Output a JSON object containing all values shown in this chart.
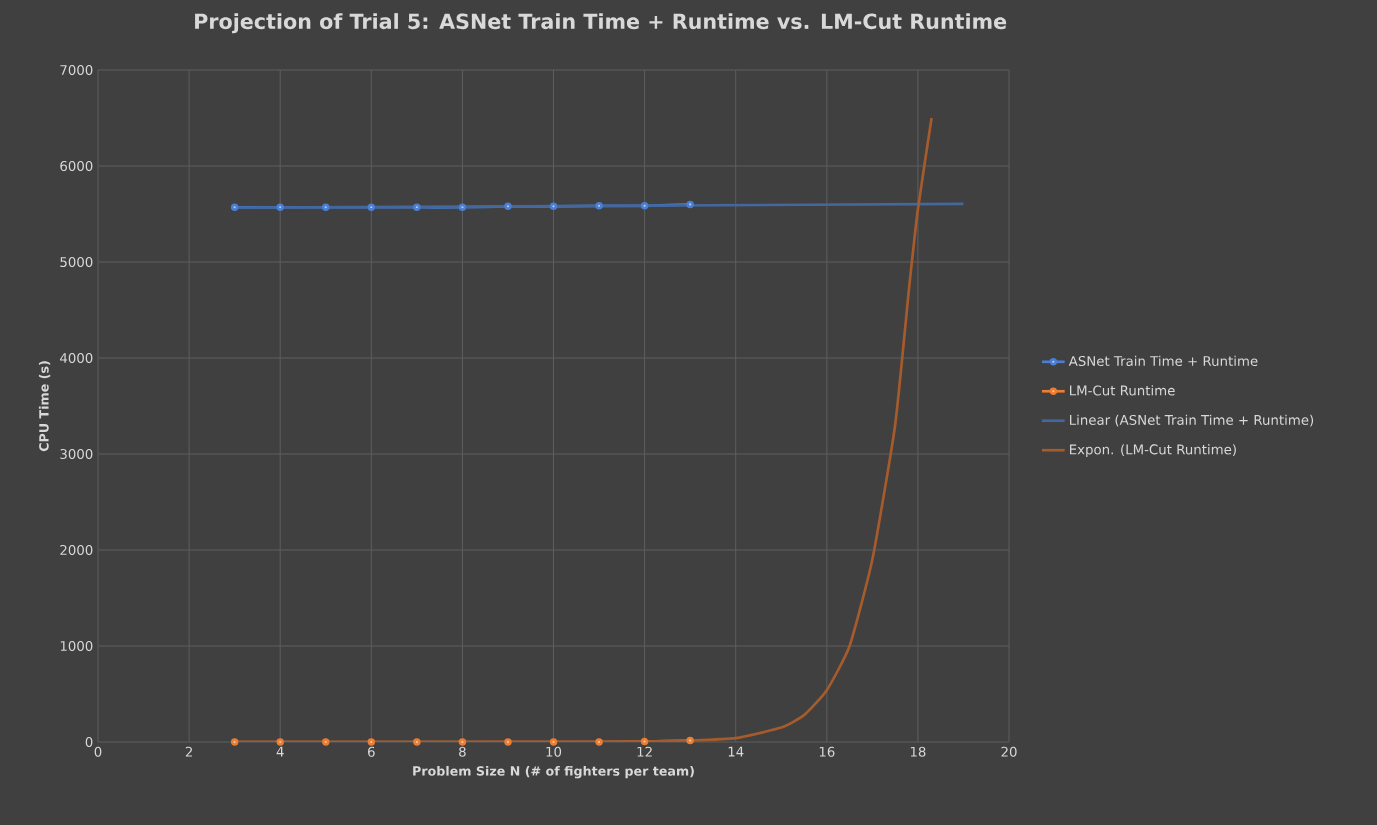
{
  "chart_data": {
    "type": "line",
    "title": "Projection of Trial 5: ASNet Train Time + Runtime vs. LM-Cut Runtime",
    "xlabel": "Problem Size N (# of fighters per team)",
    "ylabel": "CPU Time (s)",
    "x": [
      3,
      4,
      5,
      6,
      7,
      8,
      9,
      10,
      11,
      12,
      13
    ],
    "series": [
      {
        "name": "ASNet Train Time + Runtime",
        "color": "#4a7fd4",
        "marker": "circle",
        "values": [
          5570,
          5570,
          5570,
          5570,
          5570,
          5570,
          5580,
          5580,
          5585,
          5585,
          5600
        ]
      },
      {
        "name": "LM-Cut Runtime",
        "color": "#ed7d31",
        "marker": "circle",
        "values": [
          0,
          0,
          0,
          0,
          0,
          0,
          0,
          0,
          0,
          5,
          15
        ]
      },
      {
        "name": "Linear (ASNet Train Time + Runtime)",
        "color": "#44679e",
        "marker": "none",
        "x": [
          3,
          19
        ],
        "values": [
          5565,
          5605
        ]
      },
      {
        "name": "Expon. (LM-Cut Runtime)",
        "color": "#a65b2c",
        "marker": "none",
        "x": [
          3,
          10,
          12,
          13,
          14,
          15,
          15.5,
          16,
          16.5,
          17,
          17.5,
          17.8,
          18,
          18.3
        ],
        "values": [
          0,
          1,
          5,
          15,
          40,
          150,
          280,
          540,
          1000,
          1900,
          3300,
          4700,
          5550,
          6500
        ]
      }
    ],
    "xlim": [
      0,
      20
    ],
    "ylim": [
      0,
      7000
    ],
    "xticks": [
      0,
      2,
      4,
      6,
      8,
      10,
      12,
      14,
      16,
      18,
      20
    ],
    "yticks": [
      0,
      1000,
      2000,
      3000,
      4000,
      5000,
      6000,
      7000
    ],
    "grid": true,
    "legend": "right"
  }
}
